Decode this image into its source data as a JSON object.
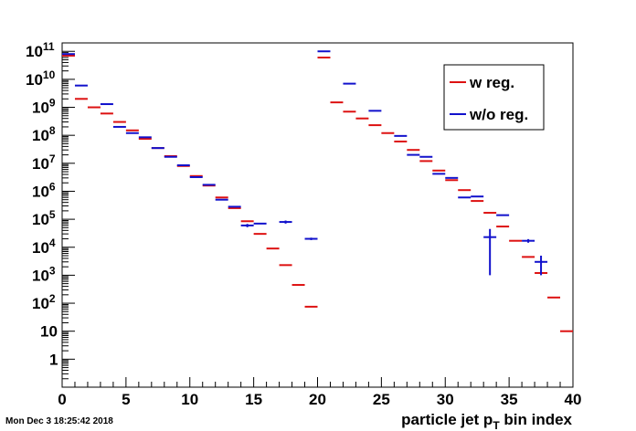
{
  "timestamp": "Mon Dec  3 18:25:42 2018",
  "chart_data": {
    "type": "scatter",
    "xlabel": "particle jet p",
    "xlabel_sub": "T",
    "xlabel_suffix": " bin index",
    "xlim": [
      0,
      40
    ],
    "ylim": [
      0.1,
      200000000000
    ],
    "yscale": "log",
    "grid": false,
    "legend_position": "top-right",
    "x_ticks": [
      0,
      5,
      10,
      15,
      20,
      25,
      30,
      35,
      40
    ],
    "x_tick_labels": [
      "0",
      "5",
      "10",
      "15",
      "20",
      "25",
      "30",
      "35",
      "40"
    ],
    "y_ticks": [
      {
        "value": 1,
        "base": "1",
        "exp": ""
      },
      {
        "value": 10,
        "base": "10",
        "exp": ""
      },
      {
        "value": 100,
        "base": "10",
        "exp": "2"
      },
      {
        "value": 1000,
        "base": "10",
        "exp": "3"
      },
      {
        "value": 10000,
        "base": "10",
        "exp": "4"
      },
      {
        "value": 100000,
        "base": "10",
        "exp": "5"
      },
      {
        "value": 1000000,
        "base": "10",
        "exp": "6"
      },
      {
        "value": 10000000,
        "base": "10",
        "exp": "7"
      },
      {
        "value": 100000000,
        "base": "10",
        "exp": "8"
      },
      {
        "value": 1000000000,
        "base": "10",
        "exp": "9"
      },
      {
        "value": 10000000000,
        "base": "10",
        "exp": "10"
      },
      {
        "value": 100000000000,
        "base": "10",
        "exp": "11"
      }
    ],
    "series": [
      {
        "name": "w reg.",
        "color": "#dd1111",
        "points": [
          {
            "x": 0.5,
            "y": 70000000000
          },
          {
            "x": 1.5,
            "y": 2000000000
          },
          {
            "x": 2.5,
            "y": 1000000000
          },
          {
            "x": 3.5,
            "y": 600000000
          },
          {
            "x": 4.5,
            "y": 300000000
          },
          {
            "x": 5.5,
            "y": 150000000
          },
          {
            "x": 6.5,
            "y": 75000000
          },
          {
            "x": 7.5,
            "y": 35000000
          },
          {
            "x": 8.5,
            "y": 18000000
          },
          {
            "x": 9.5,
            "y": 8000000
          },
          {
            "x": 10.5,
            "y": 3500000
          },
          {
            "x": 11.5,
            "y": 1600000
          },
          {
            "x": 12.5,
            "y": 600000
          },
          {
            "x": 13.5,
            "y": 250000
          },
          {
            "x": 14.5,
            "y": 85000
          },
          {
            "x": 15.5,
            "y": 30000
          },
          {
            "x": 16.5,
            "y": 9000
          },
          {
            "x": 17.5,
            "y": 2300
          },
          {
            "x": 18.5,
            "y": 450
          },
          {
            "x": 19.5,
            "y": 75
          },
          {
            "x": 20.5,
            "y": 60000000000
          },
          {
            "x": 21.5,
            "y": 1500000000
          },
          {
            "x": 22.5,
            "y": 700000000
          },
          {
            "x": 23.5,
            "y": 400000000
          },
          {
            "x": 24.5,
            "y": 230000000
          },
          {
            "x": 25.5,
            "y": 120000000
          },
          {
            "x": 26.5,
            "y": 60000000
          },
          {
            "x": 27.5,
            "y": 30000000
          },
          {
            "x": 28.5,
            "y": 12000000
          },
          {
            "x": 29.5,
            "y": 5500000
          },
          {
            "x": 30.5,
            "y": 2500000
          },
          {
            "x": 31.5,
            "y": 1100000
          },
          {
            "x": 32.5,
            "y": 450000
          },
          {
            "x": 33.5,
            "y": 170000
          },
          {
            "x": 34.5,
            "y": 55000
          },
          {
            "x": 35.5,
            "y": 17000
          },
          {
            "x": 36.5,
            "y": 4500
          },
          {
            "x": 37.5,
            "y": 1200
          },
          {
            "x": 38.5,
            "y": 160
          },
          {
            "x": 39.5,
            "y": 10
          }
        ]
      },
      {
        "name": "w/o reg.",
        "color": "#1111cc",
        "points": [
          {
            "x": 0.5,
            "y": 80000000000,
            "err": 0
          },
          {
            "x": 1.5,
            "y": 6000000000,
            "err": 0
          },
          {
            "x": 3.5,
            "y": 1300000000,
            "err": 0
          },
          {
            "x": 4.5,
            "y": 200000000,
            "err": 0
          },
          {
            "x": 5.5,
            "y": 120000000,
            "err": 0
          },
          {
            "x": 6.5,
            "y": 85000000,
            "err": 0
          },
          {
            "x": 7.5,
            "y": 35000000,
            "err": 0
          },
          {
            "x": 8.5,
            "y": 17000000,
            "err": 0
          },
          {
            "x": 9.5,
            "y": 8500000,
            "err": 0
          },
          {
            "x": 10.5,
            "y": 3200000,
            "err": 0
          },
          {
            "x": 11.5,
            "y": 1700000,
            "err": 0
          },
          {
            "x": 12.5,
            "y": 500000,
            "err": 0
          },
          {
            "x": 13.5,
            "y": 280000,
            "err": 0
          },
          {
            "x": 14.5,
            "y": 60000,
            "err": 8000
          },
          {
            "x": 15.5,
            "y": 70000,
            "err": 0
          },
          {
            "x": 17.5,
            "y": 80000,
            "err": 10000
          },
          {
            "x": 19.5,
            "y": 20000,
            "err": 2000
          },
          {
            "x": 20.5,
            "y": 100000000000,
            "err": 0
          },
          {
            "x": 22.5,
            "y": 7000000000,
            "err": 0
          },
          {
            "x": 24.5,
            "y": 750000000,
            "err": 0
          },
          {
            "x": 26.5,
            "y": 95000000,
            "err": 0
          },
          {
            "x": 27.5,
            "y": 20000000,
            "err": 0
          },
          {
            "x": 28.5,
            "y": 17000000,
            "err": 0
          },
          {
            "x": 29.5,
            "y": 4200000,
            "err": 0
          },
          {
            "x": 30.5,
            "y": 3000000,
            "err": 0
          },
          {
            "x": 31.5,
            "y": 600000,
            "err": 0
          },
          {
            "x": 32.5,
            "y": 650000,
            "err": 0
          },
          {
            "x": 33.5,
            "y": 23000,
            "err": 22000
          },
          {
            "x": 34.5,
            "y": 140000,
            "err": 0
          },
          {
            "x": 36.5,
            "y": 17000,
            "err": 2500
          },
          {
            "x": 37.5,
            "y": 3000,
            "err": 2000
          }
        ]
      }
    ]
  }
}
